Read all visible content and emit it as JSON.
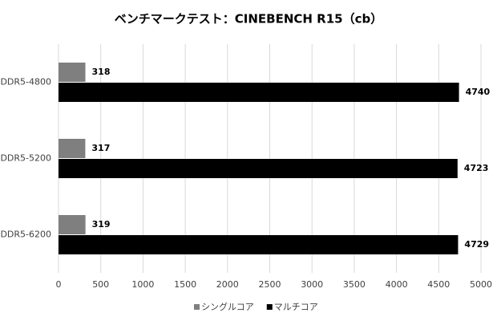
{
  "chart_data": {
    "type": "hbar",
    "title": "ベンチマークテスト：CINEBENCH R15（cb）",
    "categories": [
      "DDR5-4800",
      "DDR5-5200",
      "DDR5-6200"
    ],
    "series": [
      {
        "name": "シングルコア",
        "color": "#7f7f7f",
        "values": [
          318,
          317,
          319
        ]
      },
      {
        "name": "マルチコア",
        "color": "#000000",
        "values": [
          4740,
          4723,
          4729
        ]
      }
    ],
    "xlim": [
      0,
      5000
    ],
    "xticks": [
      0,
      500,
      1000,
      1500,
      2000,
      2500,
      3000,
      3500,
      4000,
      4500,
      5000
    ],
    "grid": true,
    "legend": "bottom"
  }
}
